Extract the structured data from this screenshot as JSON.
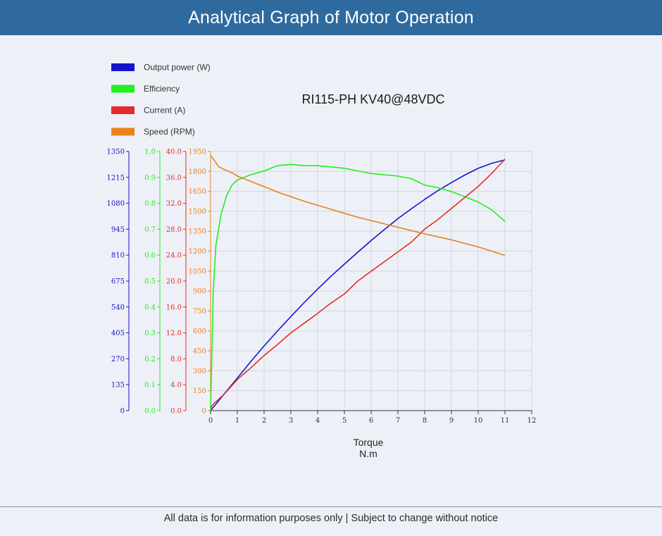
{
  "header": {
    "title": "Analytical Graph of Motor Operation"
  },
  "footer": {
    "note": "All data is for information purposes only | Subject to change without notice"
  },
  "chart_data": {
    "type": "line",
    "title": "RI115-PH KV40@48VDC",
    "xlabel": "Torque",
    "xunit": "N.m",
    "xlim": [
      0,
      12
    ],
    "x_ticks": [
      "0",
      "1",
      "2",
      "3",
      "4",
      "5",
      "6",
      "7",
      "8",
      "9",
      "10",
      "11",
      "12"
    ],
    "grid": true,
    "legend_placement": "top-left",
    "series": [
      {
        "name": "Output power (W)",
        "color": "#1515c8",
        "axis": {
          "min": 0,
          "max": 1350,
          "ticks": [
            "0",
            "135",
            "270",
            "405",
            "540",
            "675",
            "810",
            "945",
            "1080",
            "1215",
            "1350"
          ]
        },
        "x": [
          0,
          0.5,
          1,
          1.5,
          2,
          2.5,
          3,
          3.5,
          4,
          4.5,
          5,
          5.5,
          6,
          6.5,
          7,
          7.5,
          8,
          8.5,
          9,
          9.5,
          10,
          10.5,
          11
        ],
        "y": [
          0,
          85,
          170,
          255,
          337,
          415,
          490,
          563,
          633,
          700,
          763,
          825,
          886,
          944,
          1000,
          1051,
          1100,
          1146,
          1188,
          1227,
          1262,
          1288,
          1306
        ]
      },
      {
        "name": "Efficiency",
        "color": "#22ee22",
        "axis": {
          "min": 0,
          "max": 1.0,
          "ticks": [
            "0.0",
            "0.1",
            "0.2",
            "0.3",
            "0.4",
            "0.5",
            "0.6",
            "0.7",
            "0.8",
            "0.9",
            "1.0"
          ]
        },
        "x": [
          0,
          0.1,
          0.2,
          0.4,
          0.6,
          0.8,
          1,
          1.5,
          2,
          2.5,
          3,
          3.5,
          4,
          4.5,
          5,
          5.5,
          6,
          7,
          7.5,
          8,
          8.5,
          9,
          9.5,
          10,
          10.5,
          11
        ],
        "y": [
          0.0,
          0.46,
          0.64,
          0.76,
          0.83,
          0.87,
          0.89,
          0.91,
          0.925,
          0.945,
          0.95,
          0.945,
          0.945,
          0.94,
          0.935,
          0.925,
          0.915,
          0.905,
          0.895,
          0.87,
          0.86,
          0.845,
          0.825,
          0.805,
          0.775,
          0.73
        ]
      },
      {
        "name": "Current (A)",
        "color": "#e32b2b",
        "axis": {
          "min": 0,
          "max": 40.0,
          "ticks": [
            "0.0",
            "4.0",
            "8.0",
            "12.0",
            "16.0",
            "20.0",
            "24.0",
            "28.0",
            "32.0",
            "36.0",
            "40.0"
          ]
        },
        "x": [
          0,
          0.1,
          0.5,
          1,
          1.5,
          2,
          2.5,
          3,
          3.5,
          4,
          4.5,
          5,
          5.5,
          6,
          6.5,
          7,
          7.5,
          8,
          8.5,
          9,
          9.5,
          10,
          10.5,
          11
        ],
        "y": [
          0.4,
          1.0,
          2.5,
          4.8,
          6.6,
          8.5,
          10.2,
          12.0,
          13.5,
          15.0,
          16.6,
          18.0,
          20.0,
          21.5,
          23.0,
          24.5,
          26.0,
          28.0,
          29.5,
          31.2,
          32.9,
          34.6,
          36.6,
          38.8
        ]
      },
      {
        "name": "Speed (RPM)",
        "color": "#e8821e",
        "axis": {
          "min": 0,
          "max": 1950,
          "ticks": [
            "0",
            "150",
            "300",
            "450",
            "600",
            "750",
            "900",
            "1050",
            "1200",
            "1350",
            "1500",
            "1650",
            "1800",
            "1950"
          ]
        },
        "x": [
          0,
          0.1,
          0.3,
          0.5,
          0.8,
          1,
          1.5,
          2,
          2.5,
          3,
          3.5,
          4,
          4.5,
          5,
          5.5,
          6,
          6.5,
          7,
          7.5,
          8,
          8.5,
          9,
          9.5,
          10,
          10.5,
          11
        ],
        "y": [
          1920,
          1895,
          1835,
          1815,
          1790,
          1765,
          1725,
          1685,
          1645,
          1610,
          1575,
          1545,
          1515,
          1485,
          1455,
          1430,
          1405,
          1380,
          1355,
          1330,
          1308,
          1285,
          1258,
          1232,
          1200,
          1168
        ]
      }
    ]
  }
}
